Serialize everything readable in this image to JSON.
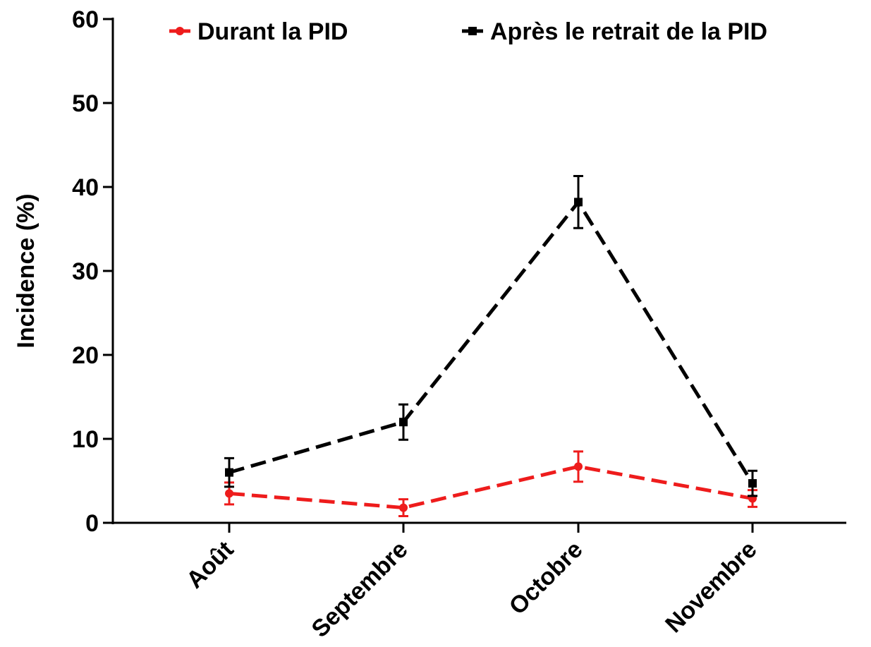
{
  "chart_data": {
    "type": "line",
    "y_label": "Incidence (%)",
    "categories": [
      "Août",
      "Septembre",
      "Octobre",
      "Novembre"
    ],
    "series": [
      {
        "name": "Durant la PID",
        "color": "#ee1c1c",
        "marker": "circle",
        "values": [
          3.5,
          1.8,
          6.7,
          2.9
        ],
        "errors": [
          1.3,
          1.0,
          1.8,
          1.0
        ]
      },
      {
        "name": "Après le retrait de la PID",
        "color": "#000000",
        "marker": "square",
        "values": [
          6.0,
          12.0,
          38.2,
          4.7
        ],
        "errors": [
          1.7,
          2.1,
          3.1,
          1.5
        ]
      }
    ],
    "ylim": [
      0,
      60
    ],
    "yticks": [
      0,
      10,
      20,
      30,
      40,
      50,
      60
    ],
    "legend": "top"
  }
}
